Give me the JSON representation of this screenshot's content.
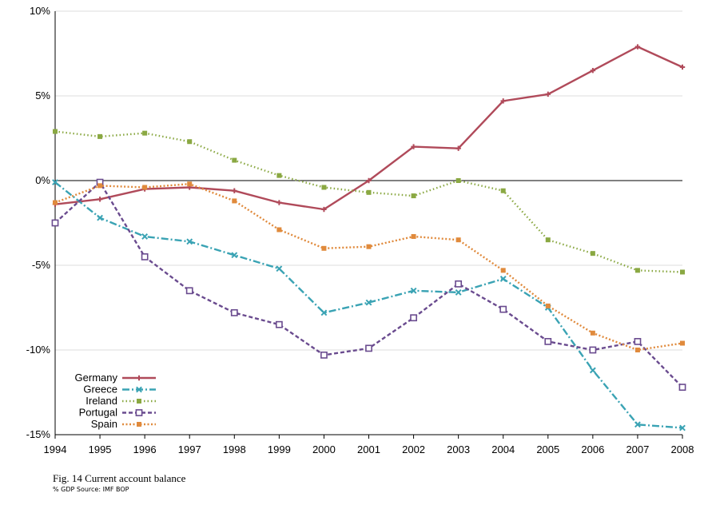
{
  "chart_data": {
    "type": "line",
    "title": "",
    "xlabel": "",
    "ylabel": "",
    "x": [
      "1994",
      "1995",
      "1996",
      "1997",
      "1998",
      "1999",
      "2000",
      "2001",
      "2002",
      "2003",
      "2004",
      "2005",
      "2006",
      "2007",
      "2008"
    ],
    "ylim": [
      -15,
      10
    ],
    "yticks": [
      10,
      5,
      0,
      -5,
      -10,
      -15
    ],
    "ytick_labels": [
      "10%",
      "5%",
      "0%",
      "-5%",
      "-10%",
      "-15%"
    ],
    "grid": "horizontal",
    "zero_line": true,
    "legend_position": "bottom-left",
    "series": [
      {
        "name": "Germany",
        "color": "#b04a5a",
        "dash": "solid",
        "marker": "plus",
        "values": [
          -1.4,
          -1.1,
          -0.5,
          -0.4,
          -0.6,
          -1.3,
          -1.7,
          0.0,
          2.0,
          1.9,
          4.7,
          5.1,
          6.5,
          7.9,
          6.7
        ]
      },
      {
        "name": "Greece",
        "color": "#3aa3b4",
        "dash": "dashdot",
        "marker": "x",
        "values": [
          -0.1,
          -2.2,
          -3.3,
          -3.6,
          -4.4,
          -5.2,
          -7.8,
          -7.2,
          -6.5,
          -6.6,
          -5.8,
          -7.5,
          -11.2,
          -14.4,
          -14.6
        ]
      },
      {
        "name": "Ireland",
        "color": "#8aa842",
        "dash": "dotted",
        "marker": "square",
        "values": [
          2.9,
          2.6,
          2.8,
          2.3,
          1.2,
          0.3,
          -0.4,
          -0.7,
          -0.9,
          0.0,
          -0.6,
          -3.5,
          -4.3,
          -5.3,
          -5.4
        ]
      },
      {
        "name": "Portugal",
        "color": "#6a4b8f",
        "dash": "dashed",
        "marker": "open-square",
        "values": [
          -2.5,
          -0.1,
          -4.5,
          -6.5,
          -7.8,
          -8.5,
          -10.3,
          -9.9,
          -8.1,
          -6.1,
          -7.6,
          -9.5,
          -10.0,
          -9.5,
          -12.2
        ]
      },
      {
        "name": "Spain",
        "color": "#e08a3c",
        "dash": "densedot",
        "marker": "square",
        "values": [
          -1.3,
          -0.3,
          -0.4,
          -0.2,
          -1.2,
          -2.9,
          -4.0,
          -3.9,
          -3.3,
          -3.5,
          -5.3,
          -7.4,
          -9.0,
          -10.0,
          -9.6
        ]
      }
    ]
  },
  "caption": {
    "title": "Fig. 14 Current account balance",
    "source": "% GDP Source: IMF BOP"
  }
}
